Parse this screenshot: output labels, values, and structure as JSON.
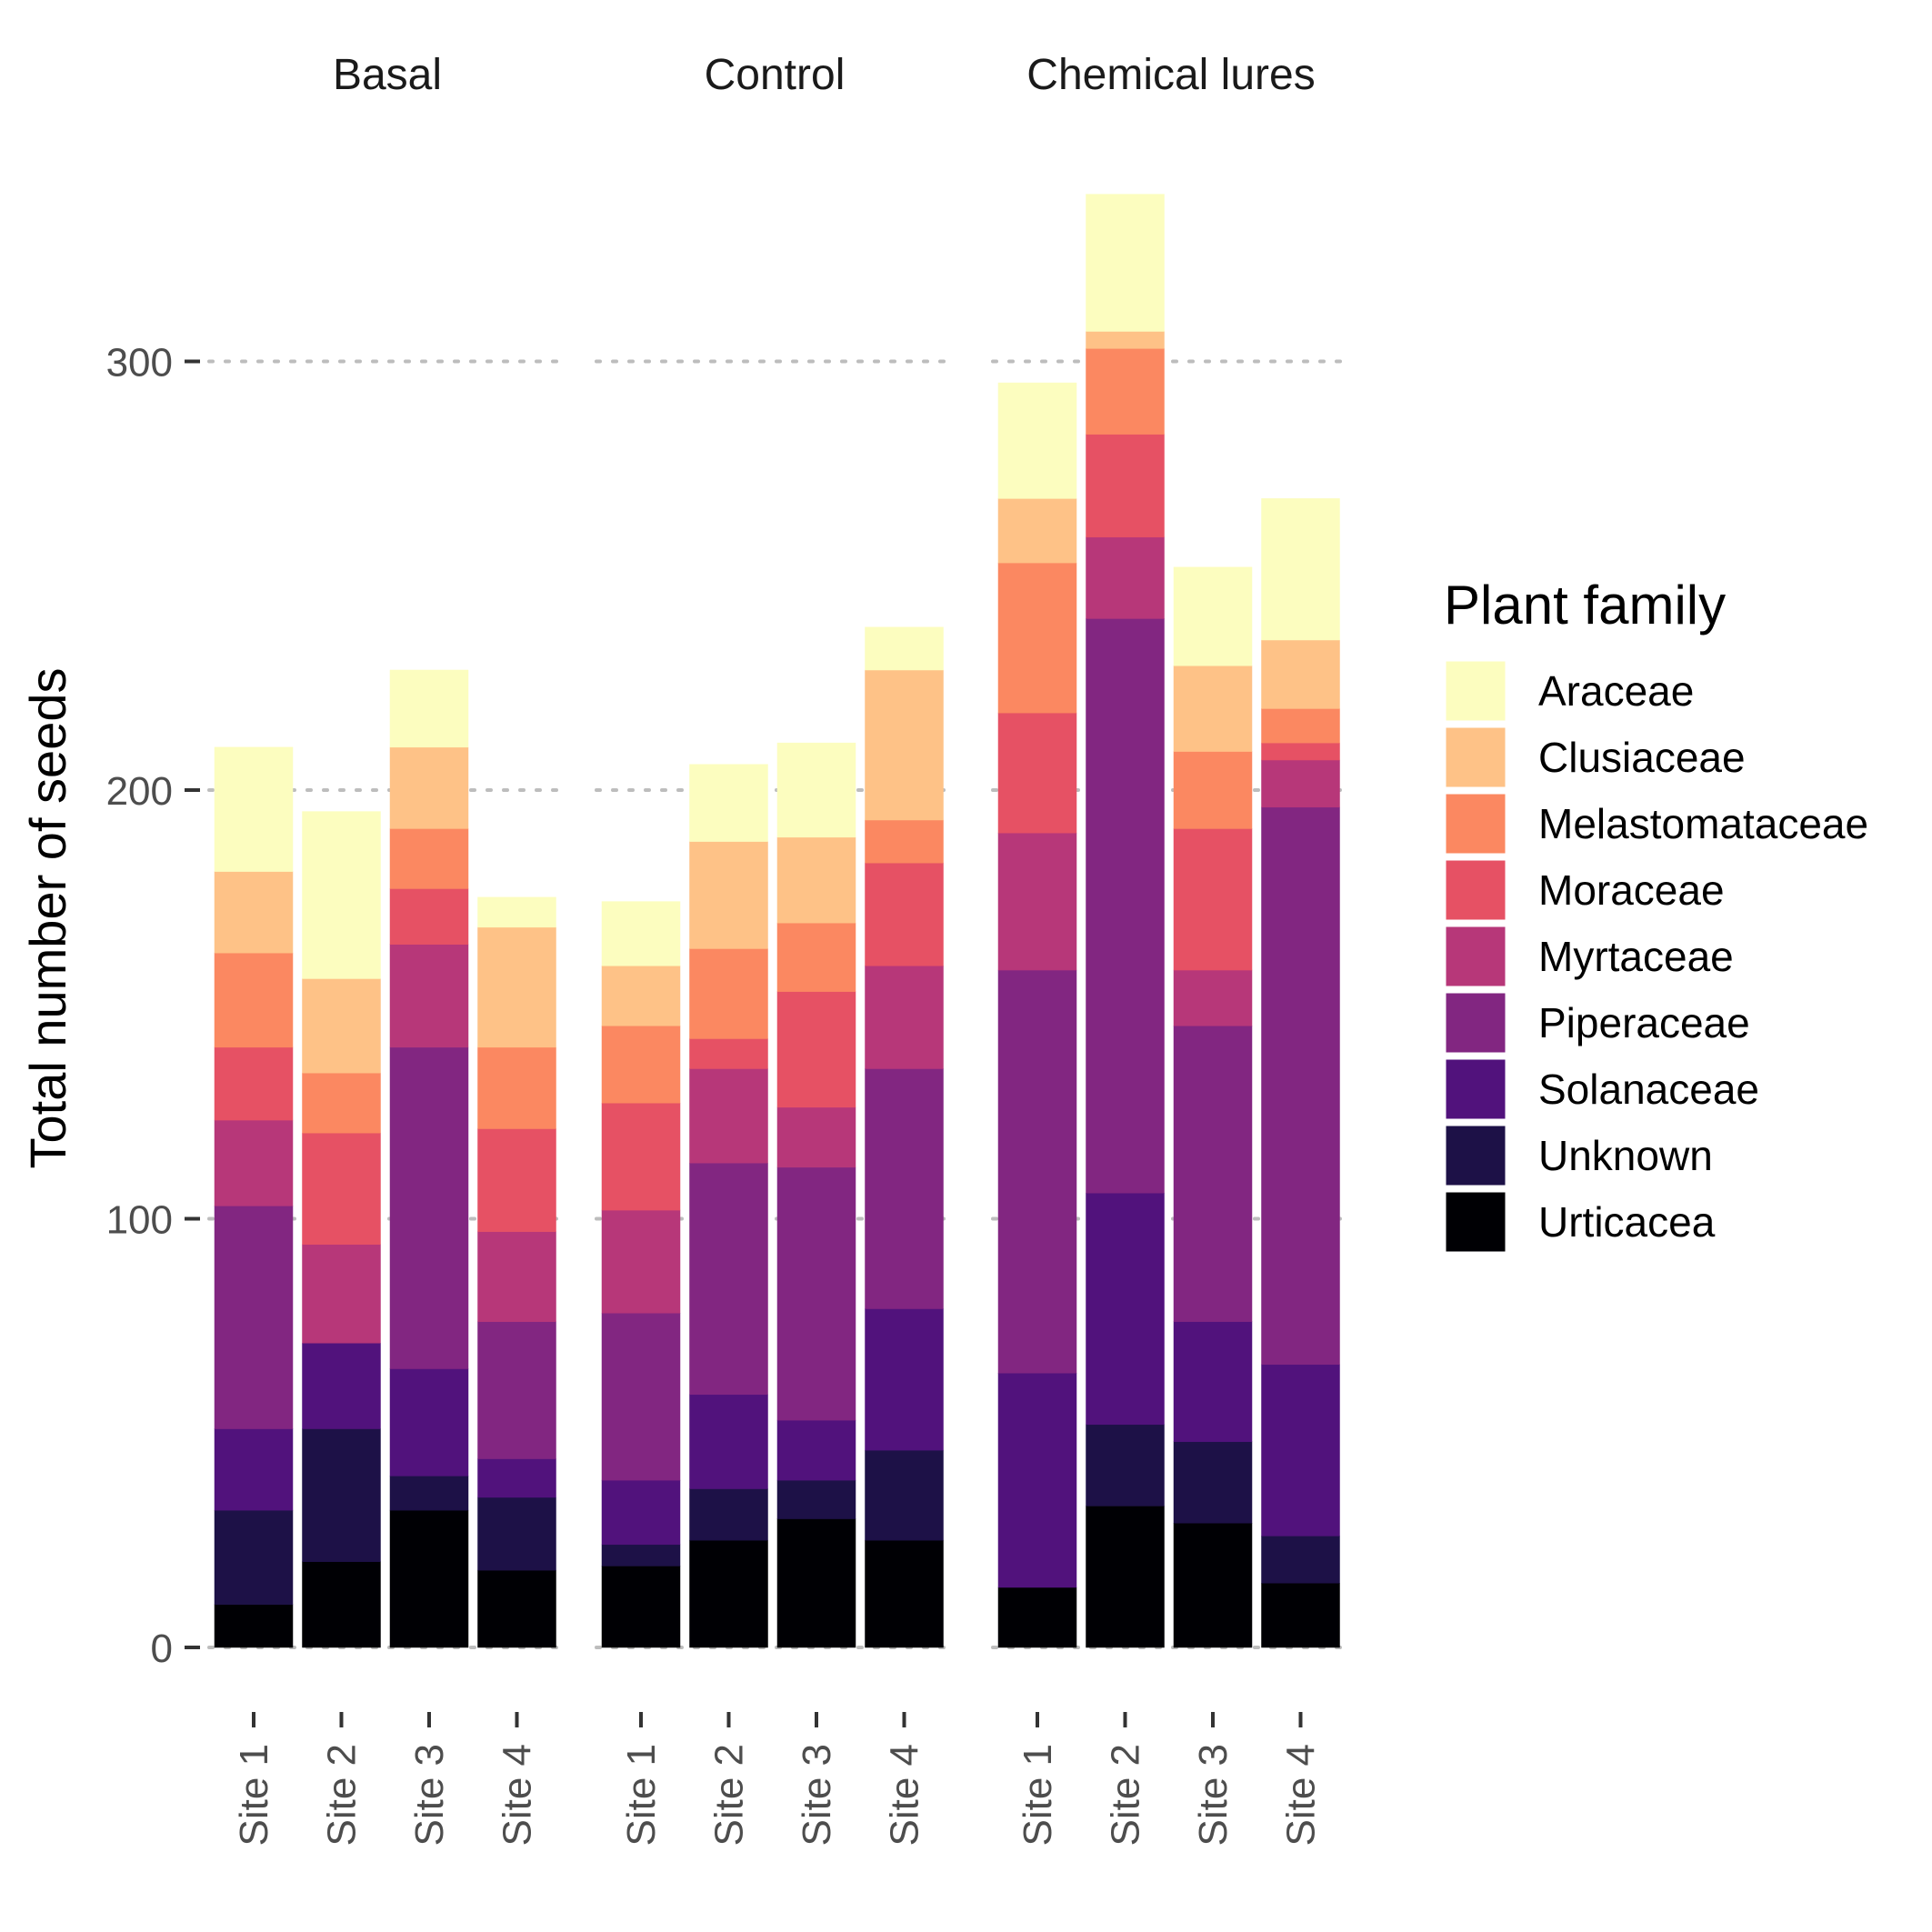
{
  "chart_data": {
    "type": "bar",
    "stacked": true,
    "facets": [
      "Basal",
      "Control",
      "Chemical lures"
    ],
    "categories": [
      "Site 1",
      "Site 2",
      "Site 3",
      "Site 4"
    ],
    "ylabel": "Total number of seeds",
    "xlabel": "",
    "ylim": [
      0,
      340
    ],
    "yticks": [
      0,
      100,
      200,
      300
    ],
    "grid": "horizontal dotted major lines",
    "legend": {
      "title": "Plant family",
      "position": "right",
      "entries": [
        "Araceae",
        "Clusiaceae",
        "Melastomataceae",
        "Moraceae",
        "Myrtaceae",
        "Piperaceae",
        "Solanaceae",
        "Unknown",
        "Urticacea"
      ],
      "colors": [
        "#FCFDBF",
        "#FEC287",
        "#FB8861",
        "#E65164",
        "#B73779",
        "#822681",
        "#51127C",
        "#1D1147",
        "#000004"
      ]
    },
    "stack_order_bottom_to_top": [
      "Urticacea",
      "Unknown",
      "Solanaceae",
      "Piperaceae",
      "Myrtaceae",
      "Moraceae",
      "Melastomataceae",
      "Clusiaceae",
      "Araceae"
    ],
    "data": {
      "Basal": {
        "Site 1": [
          10,
          22,
          19,
          52,
          20,
          17,
          22,
          19,
          29
        ],
        "Site 2": [
          20,
          31,
          20,
          0,
          23,
          26,
          14,
          22,
          39
        ],
        "Site 3": [
          32,
          8,
          25,
          75,
          24,
          13,
          14,
          19,
          18
        ],
        "Site 4": [
          18,
          17,
          9,
          32,
          21,
          24,
          19,
          28,
          7
        ]
      },
      "Control": {
        "Site 1": [
          19,
          5,
          15,
          39,
          24,
          25,
          18,
          14,
          15
        ],
        "Site 2": [
          25,
          12,
          22,
          54,
          22,
          7,
          21,
          25,
          18
        ],
        "Site 3": [
          30,
          9,
          14,
          59,
          14,
          27,
          16,
          20,
          22
        ],
        "Site 4": [
          25,
          21,
          33,
          56,
          24,
          24,
          10,
          35,
          10
        ]
      },
      "Chemical lures": {
        "Site 1": [
          14,
          0,
          50,
          94,
          32,
          28,
          35,
          15,
          27
        ],
        "Site 2": [
          33,
          19,
          54,
          134,
          19,
          24,
          20,
          4,
          32
        ],
        "Site 3": [
          29,
          19,
          28,
          69,
          13,
          33,
          18,
          20,
          23
        ],
        "Site 4": [
          15,
          11,
          40,
          130,
          11,
          4,
          8,
          16,
          33
        ]
      }
    }
  }
}
